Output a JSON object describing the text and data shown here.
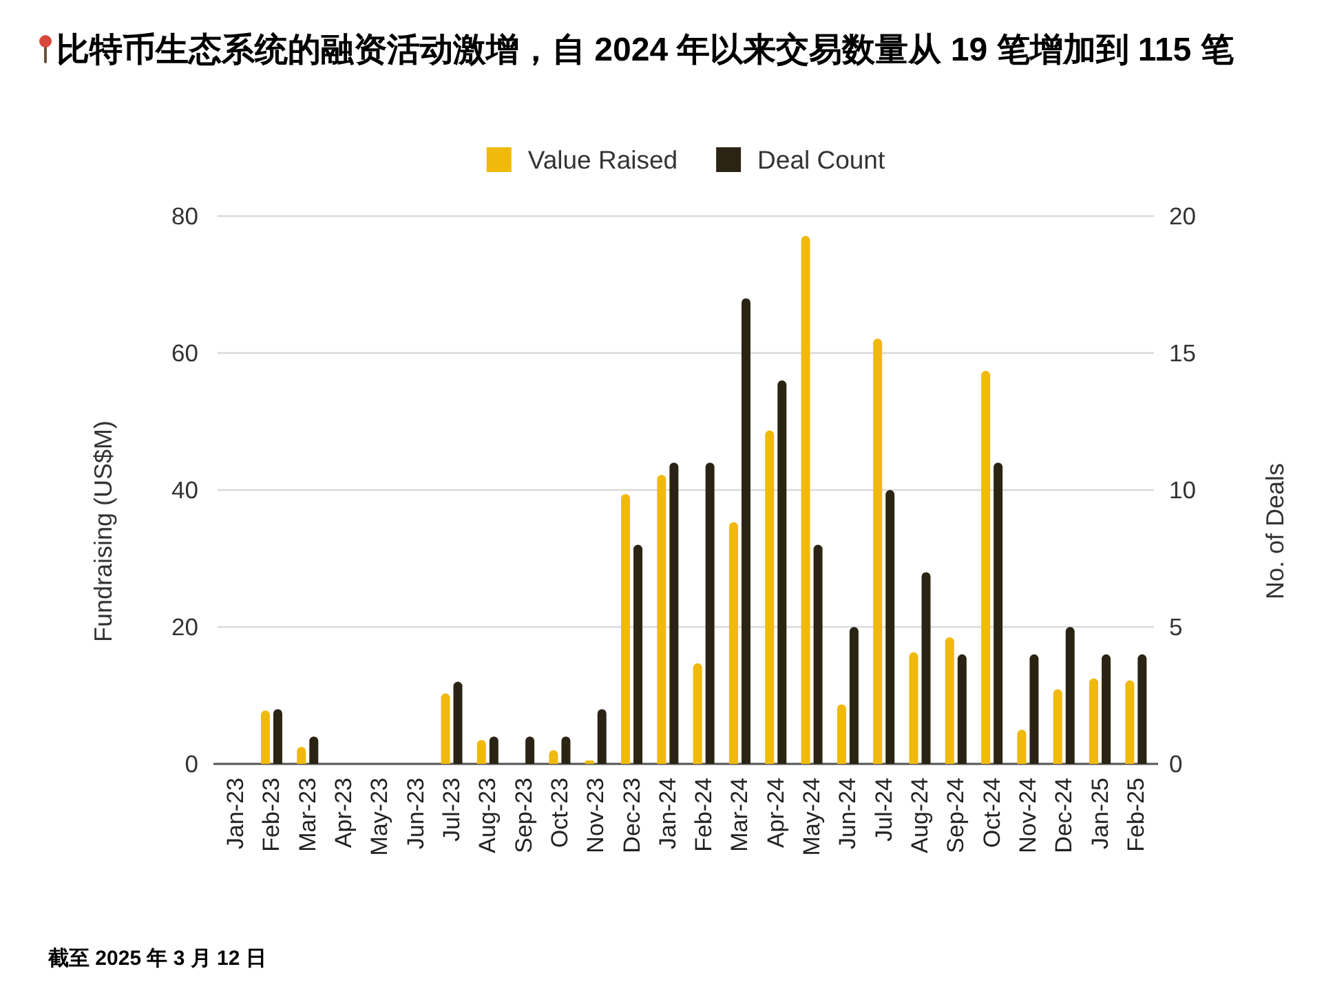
{
  "chart_data": {
    "type": "bar",
    "title": "比特币生态系统的融资活动激增，自 2024 年以来交易数量从 19 笔增加到 115 笔",
    "categories": [
      "Jan-23",
      "Feb-23",
      "Mar-23",
      "Apr-23",
      "May-23",
      "Jun-23",
      "Jul-23",
      "Aug-23",
      "Sep-23",
      "Oct-23",
      "Nov-23",
      "Dec-23",
      "Jan-24",
      "Feb-24",
      "Mar-24",
      "Apr-24",
      "May-24",
      "Jun-24",
      "Jul-24",
      "Aug-24",
      "Sep-24",
      "Oct-24",
      "Nov-24",
      "Dec-24",
      "Jan-25",
      "Feb-25"
    ],
    "series": [
      {
        "name": "Value Raised",
        "color": "#f0b90b",
        "values": [
          0,
          7.8,
          2.5,
          0,
          0,
          0,
          10.3,
          3.5,
          0,
          2.0,
          0.5,
          39.4,
          42.2,
          14.7,
          35.3,
          48.7,
          77.1,
          8.7,
          62.1,
          16.3,
          18.5,
          57.4,
          5.0,
          10.9,
          12.5,
          12.2
        ]
      },
      {
        "name": "Deal Count",
        "color": "#2b2414",
        "axis": "y2",
        "values": [
          0,
          2,
          1,
          0,
          0,
          0,
          3,
          1,
          1,
          1,
          2,
          8,
          11,
          11,
          17,
          14,
          8,
          5,
          10,
          7,
          4,
          11,
          4,
          5,
          4,
          4
        ]
      }
    ],
    "ylabel": "Fundraising (US$M)",
    "y2label": "No. of Deals",
    "ylim": [
      0,
      80
    ],
    "yticks": [
      0,
      20,
      40,
      60,
      80
    ],
    "y2lim": [
      0,
      20
    ],
    "y2ticks": [
      0,
      5,
      10,
      15,
      20
    ],
    "grid": "y",
    "legend": "top",
    "annotations": [
      "截至 2025 年 3 月 12 日"
    ]
  }
}
